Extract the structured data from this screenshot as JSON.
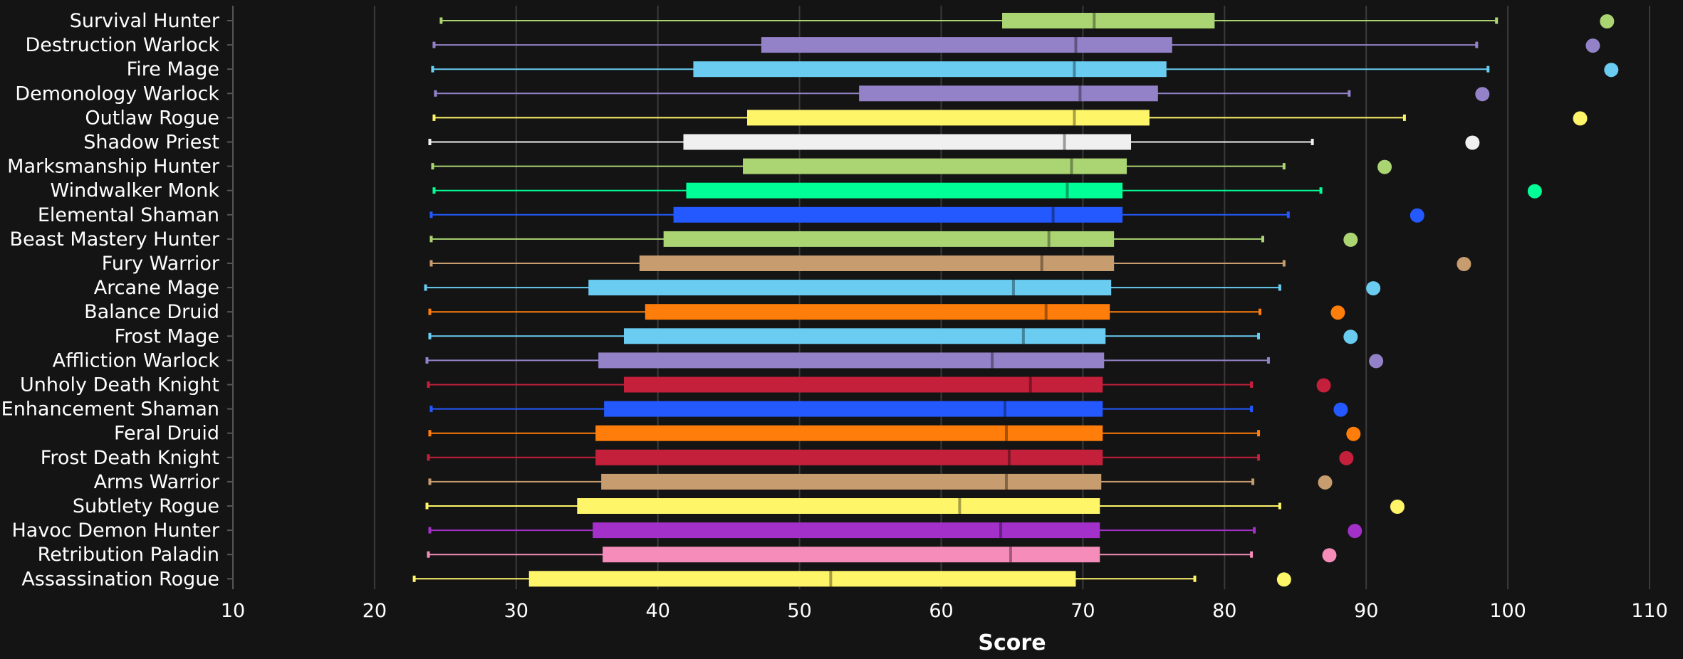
{
  "chart_data": {
    "type": "box",
    "xlabel": "Score",
    "xlim": [
      10,
      110
    ],
    "xticks": [
      10,
      20,
      30,
      40,
      50,
      60,
      70,
      80,
      90,
      100,
      110
    ],
    "grid": true,
    "background": "#141414",
    "categories": [
      {
        "name": "Survival Hunter",
        "color": "#abd473",
        "min": 24.7,
        "q1": 64.3,
        "median": 70.8,
        "q3": 79.3,
        "max": 99.2,
        "outlier": 107.0
      },
      {
        "name": "Destruction Warlock",
        "color": "#9482c9",
        "min": 24.2,
        "q1": 47.3,
        "median": 69.5,
        "q3": 76.3,
        "max": 97.8,
        "outlier": 106.0
      },
      {
        "name": "Fire Mage",
        "color": "#69ccf0",
        "min": 24.1,
        "q1": 42.5,
        "median": 69.4,
        "q3": 75.9,
        "max": 98.6,
        "outlier": 107.3
      },
      {
        "name": "Demonology Warlock",
        "color": "#9482c9",
        "min": 24.3,
        "q1": 54.2,
        "median": 69.8,
        "q3": 75.3,
        "max": 88.8,
        "outlier": 98.2
      },
      {
        "name": "Outlaw Rogue",
        "color": "#fff569",
        "min": 24.2,
        "q1": 46.3,
        "median": 69.4,
        "q3": 74.7,
        "max": 92.7,
        "outlier": 105.1
      },
      {
        "name": "Shadow Priest",
        "color": "#f0f0f0",
        "min": 23.9,
        "q1": 41.8,
        "median": 68.7,
        "q3": 73.4,
        "max": 86.2,
        "outlier": 97.5
      },
      {
        "name": "Marksmanship Hunter",
        "color": "#abd473",
        "min": 24.1,
        "q1": 46.0,
        "median": 69.2,
        "q3": 73.1,
        "max": 84.2,
        "outlier": 91.3
      },
      {
        "name": "Windwalker Monk",
        "color": "#00ff96",
        "min": 24.2,
        "q1": 42.0,
        "median": 68.9,
        "q3": 72.8,
        "max": 86.8,
        "outlier": 101.9
      },
      {
        "name": "Elemental Shaman",
        "color": "#2459ff",
        "min": 24.0,
        "q1": 41.1,
        "median": 67.9,
        "q3": 72.8,
        "max": 84.5,
        "outlier": 93.6
      },
      {
        "name": "Beast Mastery Hunter",
        "color": "#abd473",
        "min": 24.0,
        "q1": 40.4,
        "median": 67.6,
        "q3": 72.2,
        "max": 82.7,
        "outlier": 88.9
      },
      {
        "name": "Fury Warrior",
        "color": "#c79c6e",
        "min": 24.0,
        "q1": 38.7,
        "median": 67.1,
        "q3": 72.2,
        "max": 84.2,
        "outlier": 96.9
      },
      {
        "name": "Arcane Mage",
        "color": "#69ccf0",
        "min": 23.6,
        "q1": 35.1,
        "median": 65.1,
        "q3": 72.0,
        "max": 83.9,
        "outlier": 90.5
      },
      {
        "name": "Balance Druid",
        "color": "#ff7d0a",
        "min": 23.9,
        "q1": 39.1,
        "median": 67.4,
        "q3": 71.9,
        "max": 82.5,
        "outlier": 88.0
      },
      {
        "name": "Frost Mage",
        "color": "#69ccf0",
        "min": 23.9,
        "q1": 37.6,
        "median": 65.8,
        "q3": 71.6,
        "max": 82.4,
        "outlier": 88.9
      },
      {
        "name": "Affliction Warlock",
        "color": "#9482c9",
        "min": 23.7,
        "q1": 35.8,
        "median": 63.6,
        "q3": 71.5,
        "max": 83.1,
        "outlier": 90.7
      },
      {
        "name": "Unholy Death Knight",
        "color": "#c41f3b",
        "min": 23.8,
        "q1": 37.6,
        "median": 66.3,
        "q3": 71.4,
        "max": 81.9,
        "outlier": 87.0
      },
      {
        "name": "Enhancement Shaman",
        "color": "#2459ff",
        "min": 24.0,
        "q1": 36.2,
        "median": 64.5,
        "q3": 71.4,
        "max": 81.9,
        "outlier": 88.2
      },
      {
        "name": "Feral Druid",
        "color": "#ff7d0a",
        "min": 23.9,
        "q1": 35.6,
        "median": 64.6,
        "q3": 71.4,
        "max": 82.4,
        "outlier": 89.1
      },
      {
        "name": "Frost Death Knight",
        "color": "#c41f3b",
        "min": 23.8,
        "q1": 35.6,
        "median": 64.8,
        "q3": 71.4,
        "max": 82.4,
        "outlier": 88.6
      },
      {
        "name": "Arms Warrior",
        "color": "#c79c6e",
        "min": 23.9,
        "q1": 36.0,
        "median": 64.6,
        "q3": 71.3,
        "max": 82.0,
        "outlier": 87.1
      },
      {
        "name": "Subtlety Rogue",
        "color": "#fff569",
        "min": 23.7,
        "q1": 34.3,
        "median": 61.3,
        "q3": 71.2,
        "max": 83.9,
        "outlier": 92.2
      },
      {
        "name": "Havoc Demon Hunter",
        "color": "#a330c9",
        "min": 23.9,
        "q1": 35.4,
        "median": 64.2,
        "q3": 71.2,
        "max": 82.1,
        "outlier": 89.2
      },
      {
        "name": "Retribution Paladin",
        "color": "#f58cba",
        "min": 23.8,
        "q1": 36.1,
        "median": 64.9,
        "q3": 71.2,
        "max": 81.9,
        "outlier": 87.4
      },
      {
        "name": "Assassination Rogue",
        "color": "#fff569",
        "min": 22.8,
        "q1": 30.9,
        "median": 52.2,
        "q3": 69.5,
        "max": 77.9,
        "outlier": 84.2
      }
    ]
  }
}
